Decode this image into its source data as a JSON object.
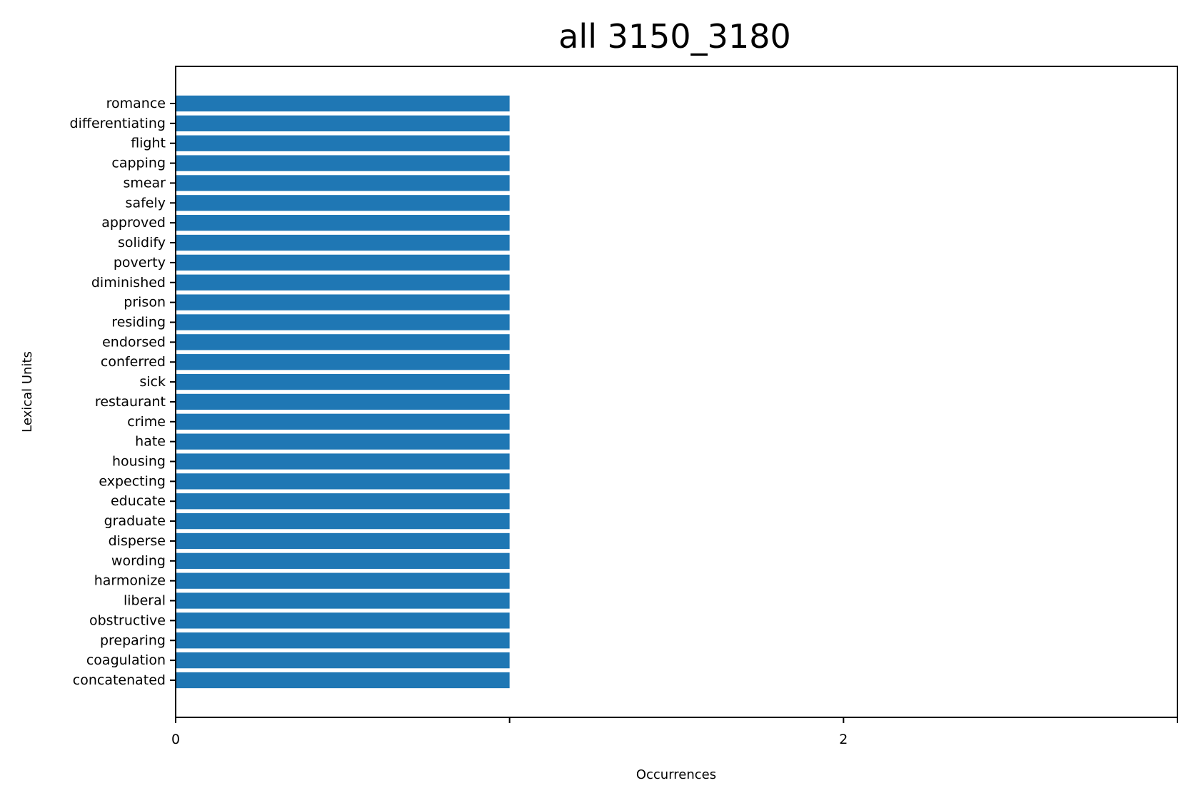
{
  "chart_data": {
    "type": "bar",
    "orientation": "horizontal",
    "title": "all 3150_3180",
    "xlabel": "Occurrences",
    "ylabel": "Lexical Units",
    "categories": [
      "romance",
      "differentiating",
      "flight",
      "capping",
      "smear",
      "safely",
      "approved",
      "solidify",
      "poverty",
      "diminished",
      "prison",
      "residing",
      "endorsed",
      "conferred",
      "sick",
      "restaurant",
      "crime",
      "hate",
      "housing",
      "expecting",
      "educate",
      "graduate",
      "disperse",
      "wording",
      "harmonize",
      "liberal",
      "obstructive",
      "preparing",
      "coagulation",
      "concatenated"
    ],
    "values": [
      1,
      1,
      1,
      1,
      1,
      1,
      1,
      1,
      1,
      1,
      1,
      1,
      1,
      1,
      1,
      1,
      1,
      1,
      1,
      1,
      1,
      1,
      1,
      1,
      1,
      1,
      1,
      1,
      1,
      1
    ],
    "xlim": [
      0,
      3
    ],
    "xticks": [
      0,
      1,
      2,
      3
    ],
    "xtick_labels": [
      "0",
      "",
      "2",
      ""
    ],
    "grid": false,
    "legend": false,
    "colors": {
      "bar": "#1f77b4",
      "axis": "#000000",
      "background": "#ffffff"
    }
  }
}
